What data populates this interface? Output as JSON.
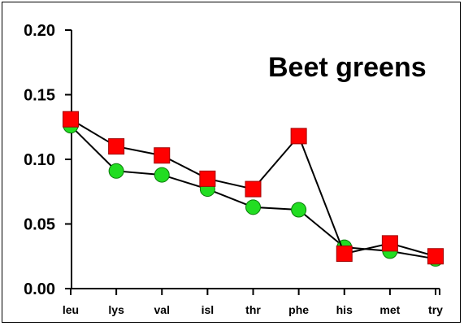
{
  "chart_data": {
    "type": "line",
    "title": "Beet greens",
    "xlabel": "",
    "ylabel": "",
    "categories": [
      "leu",
      "lys",
      "val",
      "isl",
      "thr",
      "phe",
      "his",
      "met",
      "try"
    ],
    "ylim": [
      0.0,
      0.2
    ],
    "y_ticks": [
      "0.00",
      "0.05",
      "0.10",
      "0.15",
      "0.20"
    ],
    "grid": false,
    "series": [
      {
        "color": "#22dd22",
        "marker": "circle",
        "values": [
          0.126,
          0.091,
          0.088,
          0.077,
          0.063,
          0.061,
          0.032,
          0.029,
          0.023
        ]
      },
      {
        "color": "#ff0000",
        "marker": "square",
        "values": [
          0.131,
          0.11,
          0.103,
          0.085,
          0.077,
          0.118,
          0.027,
          0.035,
          0.025
        ]
      }
    ]
  }
}
